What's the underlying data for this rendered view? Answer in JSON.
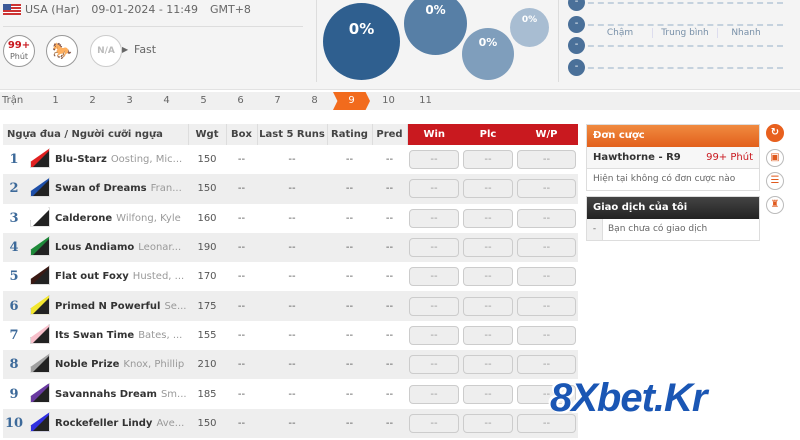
{
  "header": {
    "country": "USA (Har)",
    "datetime": "09-01-2024 - 11:49",
    "timezone": "GMT+8",
    "countdown": "99+",
    "countdown_unit": "Phút",
    "weather": "N/A",
    "track_condition": "Fast"
  },
  "bubbles": [
    "0%",
    "0%",
    "0%",
    "0%"
  ],
  "speed": [
    "Chậm",
    "Trung bình",
    "Nhanh"
  ],
  "nav": {
    "label": "Trận",
    "races": [
      "1",
      "2",
      "3",
      "4",
      "5",
      "6",
      "7",
      "8",
      "9",
      "10",
      "11"
    ],
    "selected": "9"
  },
  "table": {
    "headers": [
      "Ngựa đua / Người cưỡi ngựa",
      "Wgt",
      "Box",
      "Last 5 Runs",
      "Rating",
      "Pred",
      "Win",
      "Plc",
      "W/P"
    ],
    "rows": [
      {
        "no": "1",
        "horse": "Blu-Starz",
        "jockey": "Oosting, Mic...",
        "wgt": "150",
        "color": "#e02020"
      },
      {
        "no": "2",
        "horse": "Swan of Dreams",
        "jockey": "Fran...",
        "wgt": "150",
        "color": "#1e4fa8"
      },
      {
        "no": "3",
        "horse": "Calderone",
        "jockey": "Wilfong, Kyle",
        "wgt": "160",
        "color": "#ffffff"
      },
      {
        "no": "4",
        "horse": "Lous Andiamo",
        "jockey": "Leonar...",
        "wgt": "190",
        "color": "#1f8a3a"
      },
      {
        "no": "5",
        "horse": "Flat out Foxy",
        "jockey": "Husted, ...",
        "wgt": "170",
        "color": "#3a1a14"
      },
      {
        "no": "6",
        "horse": "Primed N Powerful",
        "jockey": "Se...",
        "wgt": "175",
        "color": "#f2e630"
      },
      {
        "no": "7",
        "horse": "Its Swan Time",
        "jockey": "Bates, ...",
        "wgt": "155",
        "color": "#f7c0cb"
      },
      {
        "no": "8",
        "horse": "Noble Prize",
        "jockey": "Knox, Phillip",
        "wgt": "210",
        "color": "#a0a0a0"
      },
      {
        "no": "9",
        "horse": "Savannahs Dream",
        "jockey": "Sm...",
        "wgt": "185",
        "color": "#6a3aa0"
      },
      {
        "no": "10",
        "horse": "Rockefeller Lindy",
        "jockey": "Ave...",
        "wgt": "150",
        "color": "#3030e0"
      }
    ],
    "empty": "--"
  },
  "betslip": {
    "title": "Đơn cược",
    "race": "Hawthorne - R9",
    "countdown": "99+ Phút",
    "empty": "Hiện tại không có đơn cược nào"
  },
  "transactions": {
    "title": "Giao dịch của tôi",
    "dash": "-",
    "empty": "Bạn chưa có giao dịch"
  },
  "watermark": "8Xbet.Kr",
  "colors": {
    "accent": "#f26b1d",
    "table_header_red": "#c9191f",
    "bubble": "#2f5f8f"
  }
}
